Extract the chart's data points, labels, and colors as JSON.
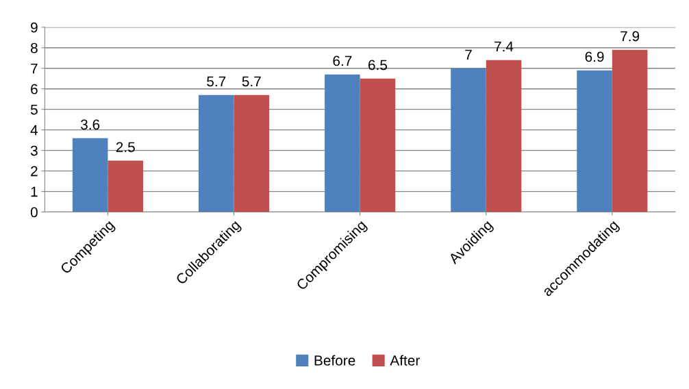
{
  "chart_data": {
    "type": "bar",
    "categories": [
      "Competing",
      "Collaborating",
      "Compromising",
      "Avoiding",
      "accommodating"
    ],
    "series": [
      {
        "name": "Before",
        "color": "#4f81bd",
        "values": [
          3.6,
          5.7,
          6.7,
          7,
          6.9
        ]
      },
      {
        "name": "After",
        "color": "#c0504d",
        "values": [
          2.5,
          5.7,
          6.5,
          7.4,
          7.9
        ]
      }
    ],
    "ylim": [
      0,
      9
    ],
    "yticks": [
      0,
      1,
      2,
      3,
      4,
      5,
      6,
      7,
      8,
      9
    ],
    "grid": "y",
    "legend": "bottom",
    "data_labels": true
  }
}
